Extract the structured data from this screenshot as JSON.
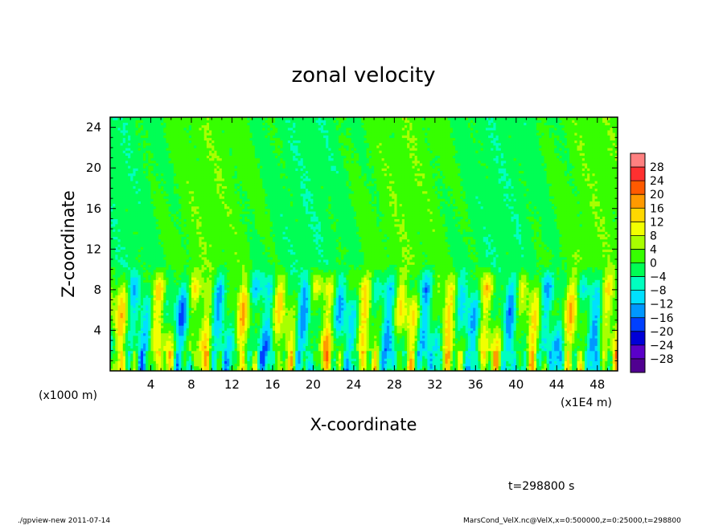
{
  "chart_data": {
    "type": "heatmap",
    "title": "zonal velocity",
    "xlabel": "X-coordinate",
    "ylabel": "Z-coordinate",
    "x_unit_note": "(x1E4 m)",
    "y_unit_note": "(x1000 m)",
    "xlim": [
      0,
      50
    ],
    "ylim": [
      0,
      25
    ],
    "x_ticks": [
      4,
      8,
      12,
      16,
      20,
      24,
      28,
      32,
      36,
      40,
      44,
      48
    ],
    "y_ticks": [
      4,
      8,
      12,
      16,
      20,
      24
    ],
    "colorbar": {
      "levels": [
        28,
        24,
        20,
        16,
        12,
        8,
        4,
        0,
        -4,
        -8,
        -12,
        -16,
        -20,
        -24,
        -28
      ],
      "colors": [
        "#ff8080",
        "#ff3030",
        "#ff5a00",
        "#ff9a00",
        "#ffd800",
        "#f2ff00",
        "#a8ff00",
        "#36ff00",
        "#00ff54",
        "#00ffc0",
        "#00e0ff",
        "#0098ff",
        "#0040ff",
        "#0000d8",
        "#5a00c8",
        "#500090"
      ]
    },
    "field_description_regions": [
      {
        "z_range": [
          0,
          10
        ],
        "pattern": "alternating positive/negative columns",
        "value_range": [
          -16,
          20
        ]
      },
      {
        "z_range": [
          10,
          25
        ],
        "pattern": "near zero, weak structure",
        "value_range": [
          -4,
          6
        ]
      }
    ]
  },
  "footer": {
    "time_label": "t=298800 s",
    "left_note": "./gpview-new   2011-07-14",
    "right_note": "MarsCond_VelX.nc@VelX,x=0:500000,z=0:25000,t=298800"
  }
}
